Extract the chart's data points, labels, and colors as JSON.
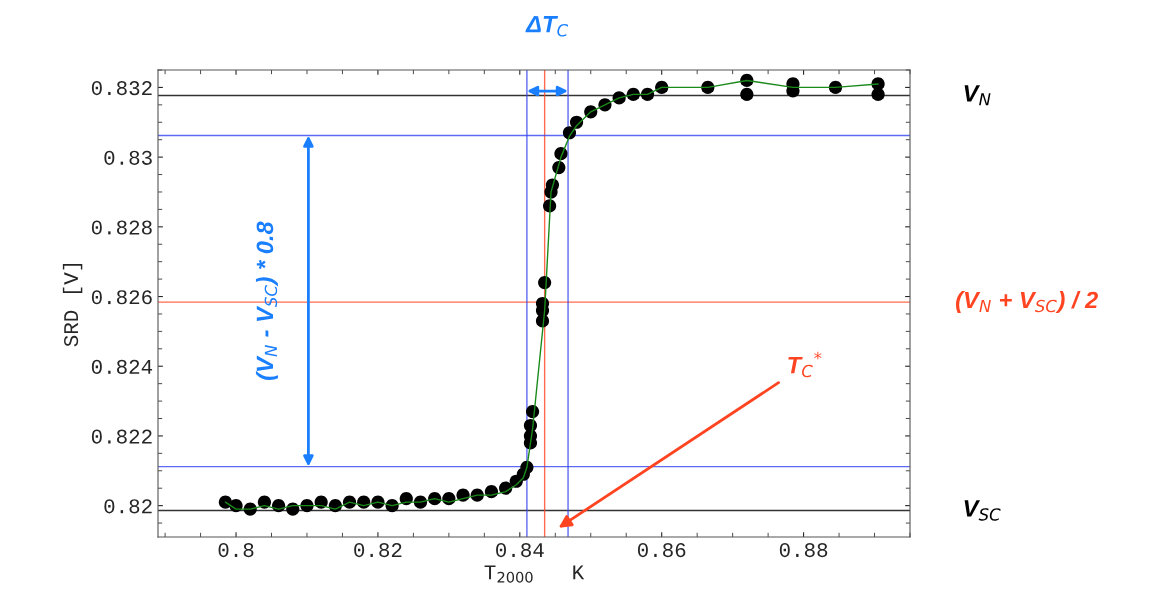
{
  "chart_data": {
    "type": "scatter",
    "xlabel": "T$_{2000}$   K",
    "ylabel": "SRD [V]",
    "xlim": [
      0.789,
      0.895
    ],
    "ylim": [
      0.8191,
      0.8325
    ],
    "xticks": [
      {
        "value": 0.8,
        "label": "0.8"
      },
      0.82,
      0.84,
      0.86,
      0.88
    ],
    "yticks": [
      0.82,
      0.822,
      0.824,
      0.826,
      0.828,
      0.83,
      0.832
    ],
    "grid": false,
    "marker": "circle",
    "series": [
      {
        "color": "#000000",
        "x": [
          0.7985,
          0.8,
          0.802,
          0.804,
          0.806,
          0.808,
          0.81,
          0.812,
          0.814,
          0.816,
          0.818,
          0.82,
          0.822,
          0.824,
          0.826,
          0.828,
          0.83,
          0.832,
          0.834,
          0.836,
          0.838,
          0.8395,
          0.8405,
          0.841,
          0.8415,
          0.8415,
          0.8415,
          0.8418,
          0.8432,
          0.8432,
          0.8432,
          0.8435,
          0.8442,
          0.8444,
          0.8446,
          0.8455,
          0.8458,
          0.847,
          0.848,
          0.85,
          0.852,
          0.854,
          0.856,
          0.858,
          0.86,
          0.8665,
          0.872,
          0.872,
          0.8785,
          0.8785,
          0.8845,
          0.8905,
          0.8905
        ],
        "values": [
          0.8201,
          0.82,
          0.8199,
          0.8201,
          0.82,
          0.8199,
          0.82,
          0.8201,
          0.82,
          0.8201,
          0.8201,
          0.8201,
          0.82,
          0.8202,
          0.8201,
          0.8202,
          0.8202,
          0.8203,
          0.8203,
          0.8204,
          0.8205,
          0.8207,
          0.8209,
          0.8211,
          0.8218,
          0.822,
          0.8223,
          0.8227,
          0.8253,
          0.8256,
          0.8258,
          0.8264,
          0.8286,
          0.829,
          0.8292,
          0.8297,
          0.8301,
          0.8307,
          0.831,
          0.8313,
          0.8315,
          0.8317,
          0.8318,
          0.8318,
          0.832,
          0.832,
          0.8318,
          0.8322,
          0.8319,
          0.8321,
          0.832,
          0.8318,
          0.8321
        ]
      },
      {
        "type": "line",
        "color": "#1a8a1a",
        "marker": "none",
        "x": [
          0.7985,
          0.8,
          0.802,
          0.804,
          0.806,
          0.808,
          0.81,
          0.812,
          0.814,
          0.816,
          0.818,
          0.82,
          0.822,
          0.824,
          0.826,
          0.828,
          0.83,
          0.832,
          0.834,
          0.836,
          0.838,
          0.8395,
          0.8405,
          0.841,
          0.8418,
          0.8435,
          0.8444,
          0.8458,
          0.847,
          0.848,
          0.85,
          0.852,
          0.854,
          0.856,
          0.858,
          0.86,
          0.8665,
          0.872,
          0.8785,
          0.8845,
          0.8905
        ],
        "values": [
          0.8201,
          0.8199,
          0.8199,
          0.82,
          0.8199,
          0.82,
          0.82,
          0.82,
          0.8199,
          0.8201,
          0.82,
          0.8201,
          0.82,
          0.8201,
          0.8201,
          0.8202,
          0.8201,
          0.8202,
          0.8203,
          0.8203,
          0.8204,
          0.8206,
          0.8208,
          0.8211,
          0.8222,
          0.8256,
          0.829,
          0.83,
          0.8306,
          0.8309,
          0.8313,
          0.8315,
          0.8317,
          0.8318,
          0.8318,
          0.832,
          0.832,
          0.8322,
          0.832,
          0.832,
          0.8321
        ]
      }
    ],
    "ref_lines": [
      {
        "axis": "y",
        "value": 0.83177,
        "label": "V$_{N}$",
        "color": "#000000"
      },
      {
        "axis": "y",
        "value": 0.81986,
        "label": "V$_{SC}$",
        "color": "#000000"
      },
      {
        "axis": "y",
        "value": 0.82584,
        "label": "(V$_{N}$ + V$_{SC}$) / 2",
        "color": "#ff4422"
      },
      {
        "axis": "x",
        "value": 0.8435,
        "label": "T$_{C}$$^{*}$",
        "color": "#ff4422"
      },
      {
        "axis": "x",
        "value": 0.841,
        "color": "#3344ee"
      },
      {
        "axis": "x",
        "value": 0.8468,
        "color": "#3344ee"
      },
      {
        "axis": "y",
        "value": 0.82112,
        "color": "#3344ee"
      },
      {
        "axis": "y",
        "value": 0.83062,
        "color": "#3344ee"
      }
    ],
    "annotations": [
      "ΔT$_{C}$",
      "(V$_{N}$ - V$_{SC}$) * 0.8"
    ]
  }
}
